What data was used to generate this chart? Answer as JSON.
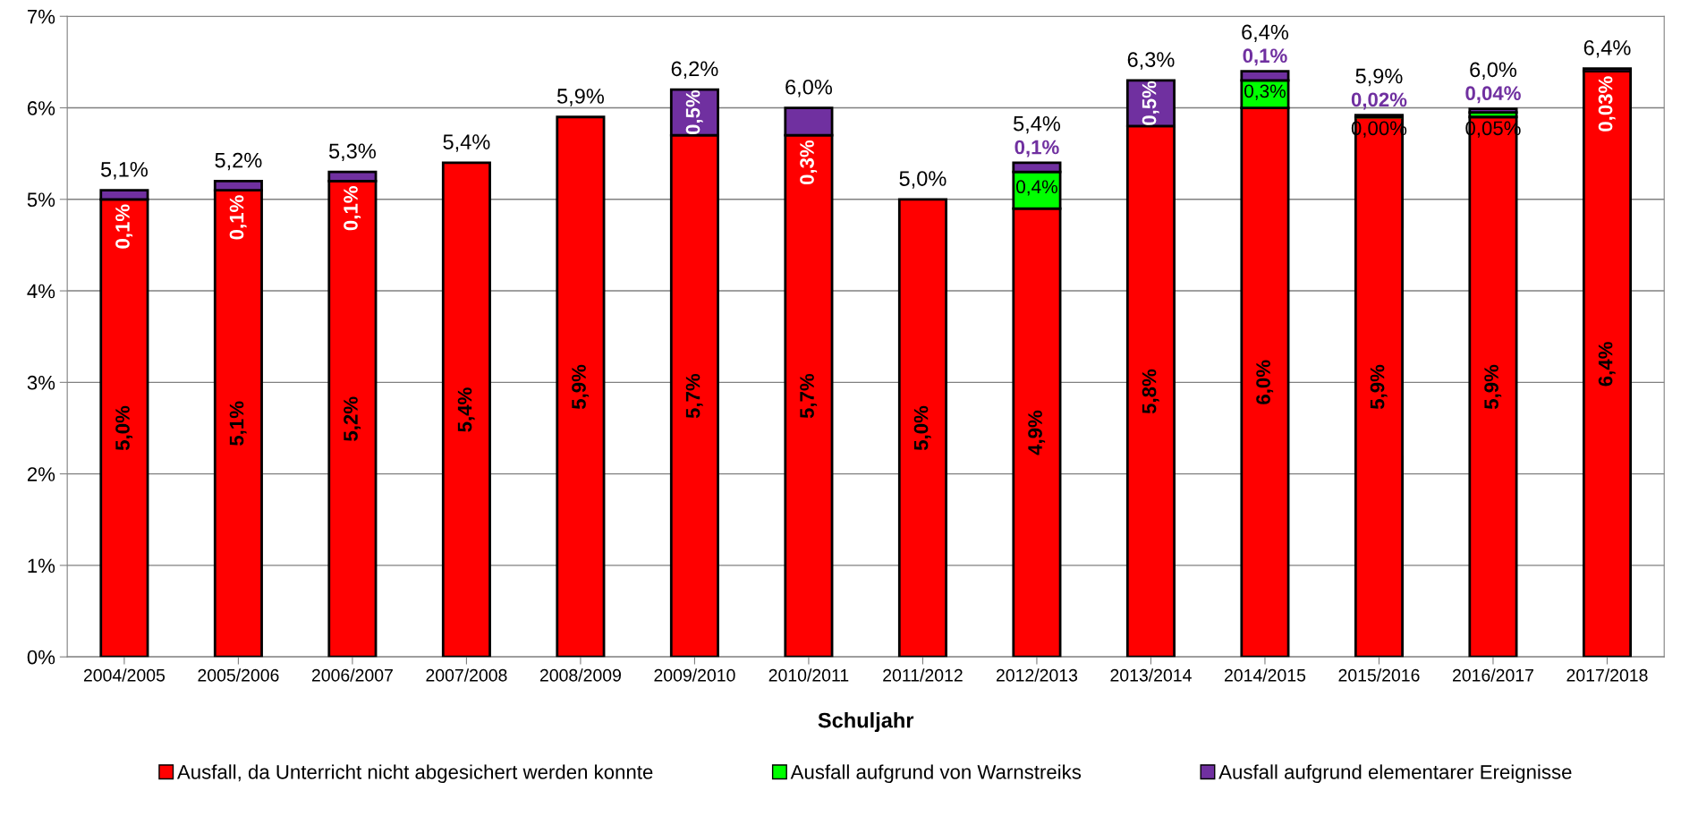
{
  "chart_data": {
    "type": "bar",
    "stacked": true,
    "xlabel": "Schuljahr",
    "categories": [
      "2004/2005",
      "2005/2006",
      "2006/2007",
      "2007/2008",
      "2008/2009",
      "2009/2010",
      "2010/2011",
      "2011/2012",
      "2012/2013",
      "2013/2014",
      "2014/2015",
      "2015/2016",
      "2016/2017",
      "2017/2018"
    ],
    "series": [
      {
        "name": "Ausfall, da Unterricht nicht abgesichert werden konnte",
        "color": "#ff0000",
        "values": [
          5.0,
          5.1,
          5.2,
          5.4,
          5.9,
          5.7,
          5.7,
          5.0,
          4.9,
          5.8,
          6.0,
          5.9,
          5.9,
          6.4
        ],
        "value_labels": [
          "5,0%",
          "5,1%",
          "5,2%",
          "5,4%",
          "5,9%",
          "5,7%",
          "5,7%",
          "5,0%",
          "4,9%",
          "5,8%",
          "6,0%",
          "5,9%",
          "5,9%",
          "6,4%"
        ]
      },
      {
        "name": "Ausfall aufgrund von Warnstreiks",
        "color": "#00ff00",
        "values": [
          null,
          null,
          null,
          null,
          null,
          null,
          null,
          null,
          0.4,
          null,
          0.3,
          0.0,
          0.05,
          null
        ],
        "value_labels": [
          null,
          null,
          null,
          null,
          null,
          null,
          null,
          null,
          "0,4%",
          null,
          "0,3%",
          "0,00%",
          "0,05%",
          null
        ]
      },
      {
        "name": "Ausfall aufgrund elementarer Ereignisse",
        "color": "#7030a0",
        "values": [
          0.1,
          0.1,
          0.1,
          null,
          null,
          0.5,
          0.3,
          null,
          0.1,
          0.5,
          0.1,
          0.02,
          0.04,
          0.03
        ],
        "value_labels": [
          "0,1%",
          "0,1%",
          "0,1%",
          null,
          null,
          "0,5%",
          "0,3%",
          null,
          "0,1%",
          "0,5%",
          "0,1%",
          "0,02%",
          "0,04%",
          "0,03%"
        ]
      }
    ],
    "totals": [
      "5,1%",
      "5,2%",
      "5,3%",
      "5,4%",
      "5,9%",
      "6,2%",
      "6,0%",
      "5,0%",
      "5,4%",
      "6,3%",
      "6,4%",
      "5,9%",
      "6,0%",
      "6,4%"
    ],
    "ylim": [
      0,
      7
    ],
    "yticks": [
      {
        "value": 0,
        "label": "0%"
      },
      {
        "value": 1,
        "label": "1%"
      },
      {
        "value": 2,
        "label": "2%"
      },
      {
        "value": 3,
        "label": "3%"
      },
      {
        "value": 4,
        "label": "4%"
      },
      {
        "value": 5,
        "label": "5%"
      },
      {
        "value": 6,
        "label": "6%"
      },
      {
        "value": 7,
        "label": "7%"
      }
    ],
    "grid": "y",
    "legend": "bottom"
  }
}
